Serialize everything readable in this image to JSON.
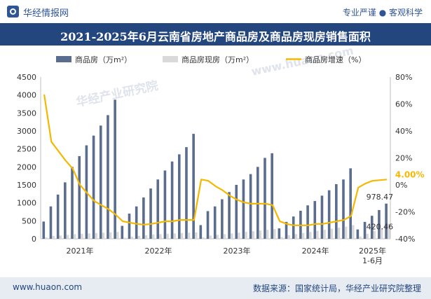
{
  "header": {
    "brand": "华经情报网",
    "slogan": "专业严谨 ● 客观科学"
  },
  "footer": {
    "site": "www.huaon.com",
    "source": "数据来源：国家统计局，华经产业研究院整理"
  },
  "watermarks": [
    "华经产业研究院",
    "www.huaon.com"
  ],
  "colors": {
    "commodity": "#5a6d8f",
    "existing": "#d9d9d9",
    "growth": "#f5b800",
    "title_bg": "#23467e"
  },
  "chart_data": {
    "type": "bar",
    "title": "2021-2025年6月云南省房地产商品房及商品房现房销售面积",
    "legend_position": "top",
    "year_labels": [
      "2021年",
      "2022年",
      "2023年",
      "2024年",
      "2025年\n1-6月"
    ],
    "left_axis": {
      "ylim": [
        0,
        4500
      ],
      "ticks": [
        "0",
        "500",
        "1000",
        "1500",
        "2000",
        "2500",
        "3000",
        "3500",
        "4000",
        "4500"
      ]
    },
    "right_axis": {
      "ylim": [
        -40,
        80
      ],
      "ticks": [
        "-40%",
        "-20%",
        "0%",
        "20%",
        "40%",
        "60%",
        "80%"
      ]
    },
    "series": [
      {
        "name": "商品房（万m²）",
        "kind": "bar",
        "values": [
          480,
          900,
          1230,
          1570,
          2000,
          2300,
          2600,
          2870,
          3150,
          3440,
          3870,
          360,
          700,
          900,
          1150,
          1400,
          1650,
          1900,
          2150,
          2350,
          2550,
          2920,
          380,
          770,
          900,
          1100,
          1300,
          1500,
          1650,
          1800,
          2000,
          2250,
          2380,
          290,
          470,
          620,
          780,
          930,
          1050,
          1200,
          1350,
          1520,
          1650,
          1960,
          260,
          470,
          640,
          800,
          978.47
        ]
      },
      {
        "name": "商品房现房（万m²）",
        "kind": "bar",
        "values": [
          40,
          80,
          90,
          110,
          130,
          140,
          150,
          160,
          170,
          180,
          190,
          30,
          60,
          80,
          100,
          120,
          130,
          140,
          150,
          160,
          170,
          180,
          40,
          90,
          110,
          130,
          150,
          170,
          190,
          210,
          230,
          250,
          270,
          50,
          100,
          130,
          160,
          190,
          220,
          250,
          280,
          310,
          340,
          380,
          60,
          140,
          220,
          300,
          420.46
        ]
      },
      {
        "name": "商品房增速（%）",
        "kind": "line",
        "values": [
          67,
          32,
          25,
          18,
          12,
          0,
          -6,
          -12,
          -15,
          -18,
          -22,
          -27,
          -28,
          -29,
          -29.5,
          -29,
          -28,
          -27,
          -27,
          -26,
          -26,
          -26,
          4,
          3,
          -1,
          -4,
          -8,
          -11,
          -13,
          -14,
          -14,
          -14,
          -15,
          -27,
          -29,
          -30,
          -30,
          -30,
          -29,
          -29,
          -28,
          -27,
          -26,
          -23,
          -2,
          1,
          3,
          3.5,
          4
        ]
      }
    ],
    "annotations": {
      "last_commodity": "978.47",
      "last_existing": "420.46",
      "last_growth": "4.00%"
    }
  }
}
